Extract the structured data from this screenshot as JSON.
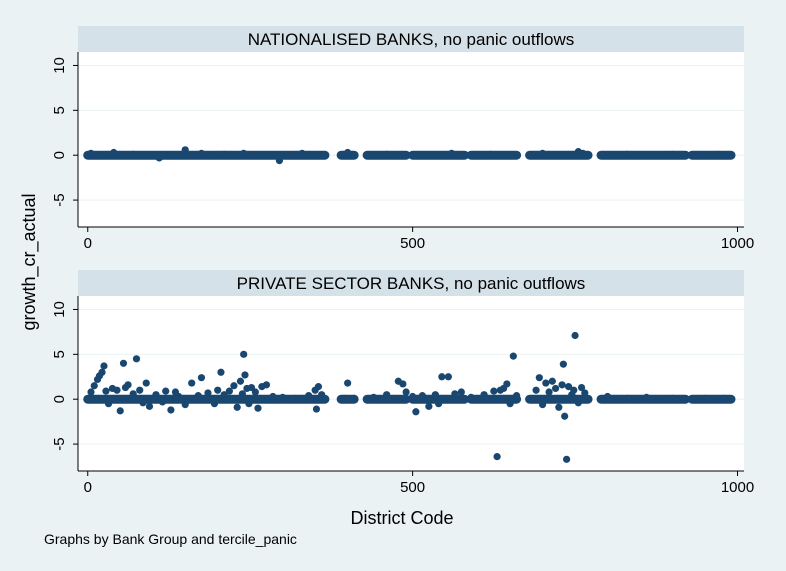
{
  "figure": {
    "y_axis_title": "growth_cr_actual",
    "x_axis_title": "District Code",
    "note": "Graphs by Bank Group and tercile_panic",
    "colors": {
      "background": "#eaf2f3",
      "plot_bg": "#ffffff",
      "strip_bg": "#d4e1e8",
      "marker": "#1a476f",
      "grid": "#eaf2f3"
    }
  },
  "chart_data": [
    {
      "type": "scatter",
      "title": "NATIONALISED BANKS, no panic outflows",
      "xlabel": "District Code",
      "ylabel": "growth_cr_actual",
      "xlim": [
        -15,
        1010
      ],
      "ylim": [
        -8,
        11.5
      ],
      "xticks": [
        0,
        500,
        1000
      ],
      "yticks": [
        10,
        5,
        0,
        -5
      ],
      "grid": true,
      "clusters": [
        [
          0,
          365
        ],
        [
          390,
          410
        ],
        [
          430,
          490
        ],
        [
          500,
          580
        ],
        [
          590,
          660
        ],
        [
          680,
          770
        ],
        [
          790,
          920
        ],
        [
          930,
          990
        ]
      ],
      "points": [
        {
          "x": 5,
          "y": 0.2
        },
        {
          "x": 40,
          "y": 0.3
        },
        {
          "x": 70,
          "y": 0.1
        },
        {
          "x": 110,
          "y": -0.3
        },
        {
          "x": 150,
          "y": 0.6
        },
        {
          "x": 175,
          "y": 0.2
        },
        {
          "x": 210,
          "y": 0.1
        },
        {
          "x": 240,
          "y": 0.2
        },
        {
          "x": 295,
          "y": -0.6
        },
        {
          "x": 330,
          "y": 0.2
        },
        {
          "x": 400,
          "y": 0.3
        },
        {
          "x": 460,
          "y": 0.1
        },
        {
          "x": 560,
          "y": 0.2
        },
        {
          "x": 620,
          "y": 0.1
        },
        {
          "x": 700,
          "y": 0.2
        },
        {
          "x": 755,
          "y": 0.4
        },
        {
          "x": 762,
          "y": 0.2
        },
        {
          "x": 830,
          "y": 0.1
        },
        {
          "x": 900,
          "y": 0.1
        },
        {
          "x": 970,
          "y": 0.1
        }
      ]
    },
    {
      "type": "scatter",
      "title": "PRIVATE SECTOR BANKS, no panic outflows",
      "xlabel": "District Code",
      "ylabel": "growth_cr_actual",
      "xlim": [
        -15,
        1010
      ],
      "ylim": [
        -8,
        11.5
      ],
      "xticks": [
        0,
        500,
        1000
      ],
      "yticks": [
        10,
        5,
        0,
        -5
      ],
      "grid": true,
      "clusters": [
        [
          0,
          365
        ],
        [
          390,
          410
        ],
        [
          430,
          490
        ],
        [
          500,
          580
        ],
        [
          590,
          660
        ],
        [
          680,
          770
        ],
        [
          790,
          920
        ],
        [
          930,
          990
        ]
      ],
      "points": [
        {
          "x": 5,
          "y": 0.8
        },
        {
          "x": 10,
          "y": 1.5
        },
        {
          "x": 15,
          "y": 2.2
        },
        {
          "x": 18,
          "y": 2.6
        },
        {
          "x": 22,
          "y": 3.0
        },
        {
          "x": 25,
          "y": 3.7
        },
        {
          "x": 28,
          "y": 0.9
        },
        {
          "x": 32,
          "y": -0.5
        },
        {
          "x": 38,
          "y": 1.2
        },
        {
          "x": 45,
          "y": 1.0
        },
        {
          "x": 50,
          "y": -1.3
        },
        {
          "x": 55,
          "y": 4.0
        },
        {
          "x": 58,
          "y": 1.3
        },
        {
          "x": 62,
          "y": 1.6
        },
        {
          "x": 70,
          "y": 0.6
        },
        {
          "x": 75,
          "y": 4.5
        },
        {
          "x": 80,
          "y": 1.0
        },
        {
          "x": 85,
          "y": -0.4
        },
        {
          "x": 90,
          "y": 1.8
        },
        {
          "x": 95,
          "y": -0.8
        },
        {
          "x": 105,
          "y": 0.5
        },
        {
          "x": 115,
          "y": -0.3
        },
        {
          "x": 120,
          "y": 0.9
        },
        {
          "x": 128,
          "y": -1.2
        },
        {
          "x": 135,
          "y": 0.8
        },
        {
          "x": 140,
          "y": 0.3
        },
        {
          "x": 150,
          "y": -0.6
        },
        {
          "x": 160,
          "y": 1.8
        },
        {
          "x": 170,
          "y": 0.4
        },
        {
          "x": 175,
          "y": 2.4
        },
        {
          "x": 185,
          "y": 0.7
        },
        {
          "x": 195,
          "y": -0.5
        },
        {
          "x": 200,
          "y": 1.0
        },
        {
          "x": 205,
          "y": 3.0
        },
        {
          "x": 210,
          "y": 0.5
        },
        {
          "x": 218,
          "y": 0.9
        },
        {
          "x": 225,
          "y": 1.5
        },
        {
          "x": 230,
          "y": -0.9
        },
        {
          "x": 235,
          "y": 2.0
        },
        {
          "x": 238,
          "y": 0.6
        },
        {
          "x": 240,
          "y": 5.0
        },
        {
          "x": 242,
          "y": 2.7
        },
        {
          "x": 245,
          "y": 1.2
        },
        {
          "x": 248,
          "y": -0.5
        },
        {
          "x": 252,
          "y": 1.3
        },
        {
          "x": 258,
          "y": 0.8
        },
        {
          "x": 262,
          "y": -1.0
        },
        {
          "x": 268,
          "y": 1.4
        },
        {
          "x": 275,
          "y": 1.6
        },
        {
          "x": 285,
          "y": 0.3
        },
        {
          "x": 300,
          "y": 0.2
        },
        {
          "x": 320,
          "y": 0.1
        },
        {
          "x": 340,
          "y": 0.4
        },
        {
          "x": 350,
          "y": 1.0
        },
        {
          "x": 355,
          "y": 1.4
        },
        {
          "x": 352,
          "y": -1.1
        },
        {
          "x": 360,
          "y": 0.5
        },
        {
          "x": 395,
          "y": 0.1
        },
        {
          "x": 400,
          "y": 1.8
        },
        {
          "x": 410,
          "y": 0.1
        },
        {
          "x": 440,
          "y": 0.2
        },
        {
          "x": 460,
          "y": 0.5
        },
        {
          "x": 478,
          "y": 2.0
        },
        {
          "x": 485,
          "y": 1.7
        },
        {
          "x": 490,
          "y": 0.8
        },
        {
          "x": 500,
          "y": 0.3
        },
        {
          "x": 505,
          "y": -1.4
        },
        {
          "x": 515,
          "y": 0.4
        },
        {
          "x": 525,
          "y": -0.8
        },
        {
          "x": 535,
          "y": 0.5
        },
        {
          "x": 540,
          "y": -0.5
        },
        {
          "x": 545,
          "y": 2.5
        },
        {
          "x": 555,
          "y": 2.5
        },
        {
          "x": 565,
          "y": 0.6
        },
        {
          "x": 575,
          "y": 0.8
        },
        {
          "x": 590,
          "y": 0.2
        },
        {
          "x": 610,
          "y": 0.5
        },
        {
          "x": 625,
          "y": 0.9
        },
        {
          "x": 630,
          "y": -6.4
        },
        {
          "x": 635,
          "y": 1.0
        },
        {
          "x": 640,
          "y": 1.2
        },
        {
          "x": 645,
          "y": 1.7
        },
        {
          "x": 650,
          "y": -0.5
        },
        {
          "x": 655,
          "y": 4.8
        },
        {
          "x": 660,
          "y": 0.4
        },
        {
          "x": 690,
          "y": 1.0
        },
        {
          "x": 695,
          "y": 2.4
        },
        {
          "x": 700,
          "y": -0.6
        },
        {
          "x": 705,
          "y": 1.8
        },
        {
          "x": 710,
          "y": 0.8
        },
        {
          "x": 715,
          "y": 2.0
        },
        {
          "x": 720,
          "y": 1.2
        },
        {
          "x": 725,
          "y": -0.9
        },
        {
          "x": 730,
          "y": 1.6
        },
        {
          "x": 732,
          "y": 3.9
        },
        {
          "x": 734,
          "y": -1.9
        },
        {
          "x": 737,
          "y": -6.7
        },
        {
          "x": 740,
          "y": 1.4
        },
        {
          "x": 745,
          "y": 0.5
        },
        {
          "x": 748,
          "y": 1.0
        },
        {
          "x": 750,
          "y": 7.1
        },
        {
          "x": 755,
          "y": -0.4
        },
        {
          "x": 760,
          "y": 1.3
        },
        {
          "x": 765,
          "y": 0.7
        },
        {
          "x": 800,
          "y": 0.3
        },
        {
          "x": 830,
          "y": 0.1
        },
        {
          "x": 860,
          "y": 0.2
        },
        {
          "x": 900,
          "y": 0.1
        },
        {
          "x": 950,
          "y": 0.1
        },
        {
          "x": 980,
          "y": 0.1
        }
      ]
    }
  ]
}
